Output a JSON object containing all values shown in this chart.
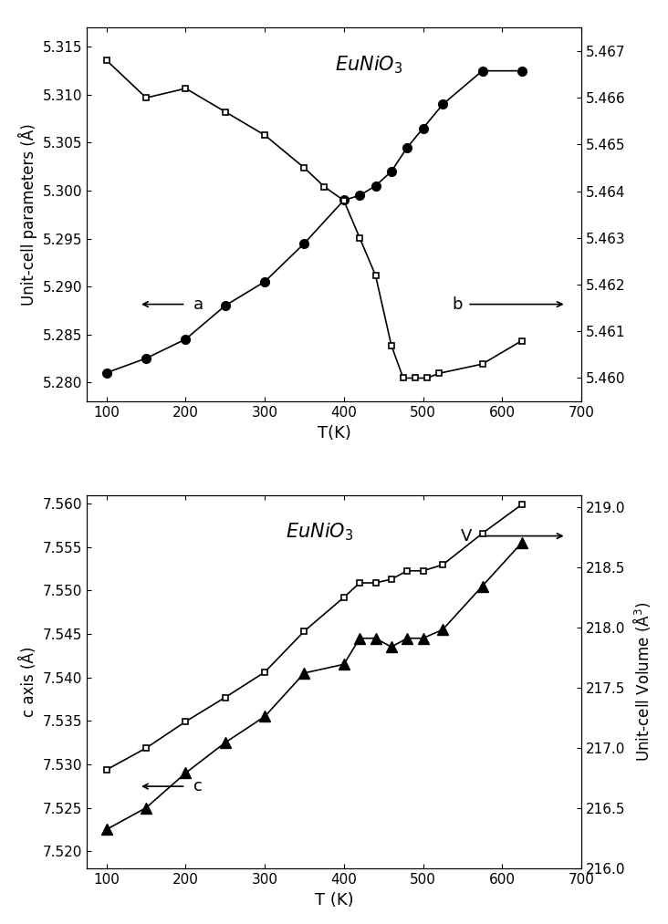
{
  "top": {
    "title": "EuNiO$_3$",
    "xlabel": "T(K)",
    "ylabel_left": "Unit-cell parameters (Å)",
    "xlim": [
      75,
      700
    ],
    "xticks": [
      100,
      200,
      300,
      400,
      500,
      600,
      700
    ],
    "ylim_left": [
      5.278,
      5.317
    ],
    "ylim_right": [
      5.4595,
      5.4675
    ],
    "yticks_left": [
      5.28,
      5.285,
      5.29,
      5.295,
      5.3,
      5.305,
      5.31,
      5.315
    ],
    "yticks_right": [
      5.46,
      5.461,
      5.462,
      5.463,
      5.464,
      5.465,
      5.466,
      5.467
    ],
    "series_a_T": [
      100,
      150,
      200,
      250,
      300,
      350,
      400,
      420,
      440,
      460,
      480,
      500,
      525,
      575,
      625
    ],
    "series_a_y": [
      5.281,
      5.2825,
      5.2845,
      5.288,
      5.2905,
      5.2945,
      5.299,
      5.2995,
      5.3005,
      5.302,
      5.3045,
      5.3065,
      5.309,
      5.3125,
      5.3125
    ],
    "series_b_T": [
      100,
      150,
      200,
      250,
      300,
      350,
      375,
      400,
      420,
      440,
      460,
      475,
      490,
      505,
      520,
      575,
      625
    ],
    "series_b_y": [
      5.4668,
      5.466,
      5.4662,
      5.4657,
      5.4652,
      5.4645,
      5.4641,
      5.4638,
      5.463,
      5.4622,
      5.4607,
      5.46,
      5.46,
      5.46,
      5.4601,
      5.4603,
      5.4608
    ]
  },
  "bottom": {
    "title": "EuNiO$_3$",
    "xlabel": "T (K)",
    "ylabel_left": "c axis (Å)",
    "ylabel_right": "Unit-cell Volume (Å$^3$)",
    "xlim": [
      75,
      700
    ],
    "xticks": [
      100,
      200,
      300,
      400,
      500,
      600,
      700
    ],
    "ylim_left": [
      7.518,
      7.561
    ],
    "ylim_right": [
      216.0,
      219.1
    ],
    "yticks_left": [
      7.52,
      7.525,
      7.53,
      7.535,
      7.54,
      7.545,
      7.55,
      7.555,
      7.56
    ],
    "yticks_right": [
      216.0,
      216.5,
      217.0,
      217.5,
      218.0,
      218.5,
      219.0
    ],
    "series_c_T": [
      100,
      150,
      200,
      250,
      300,
      350,
      400,
      420,
      440,
      460,
      480,
      500,
      525,
      575,
      625
    ],
    "series_c_y": [
      7.5225,
      7.525,
      7.529,
      7.5325,
      7.5355,
      7.5405,
      7.5415,
      7.5445,
      7.5445,
      7.5435,
      7.5445,
      7.5445,
      7.5455,
      7.5505,
      7.5555
    ],
    "series_V_T": [
      100,
      150,
      200,
      250,
      300,
      350,
      400,
      420,
      440,
      460,
      480,
      500,
      525,
      575,
      625
    ],
    "series_V_y": [
      216.82,
      217.0,
      217.22,
      217.42,
      217.63,
      217.97,
      218.25,
      218.37,
      218.37,
      218.4,
      218.47,
      218.47,
      218.52,
      218.78,
      219.02
    ]
  }
}
